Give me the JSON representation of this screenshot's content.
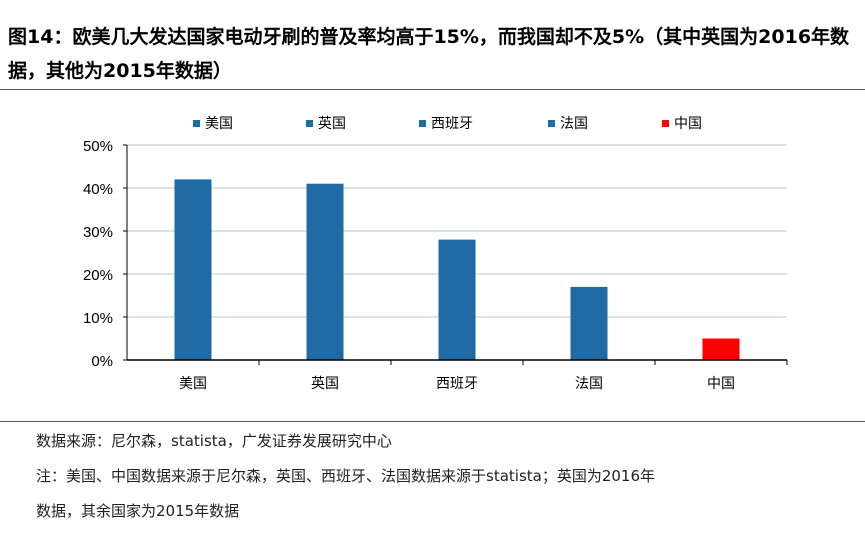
{
  "title": "图14：欧美几大发达国家电动牙刷的普及率均高于15%，而我国却不及5%（其中英国为2016年数据，其他为2015年数据）",
  "chart_data": {
    "type": "bar",
    "categories": [
      "美国",
      "英国",
      "西班牙",
      "法国",
      "中国"
    ],
    "values": [
      42,
      41,
      28,
      17,
      5
    ],
    "colors": [
      "#1f6aa5",
      "#1f6aa5",
      "#1f6aa5",
      "#1f6aa5",
      "#ff0000"
    ],
    "legend": [
      "美国",
      "英国",
      "西班牙",
      "法国",
      "中国"
    ],
    "legend_placement": "top",
    "ylim": [
      0,
      50
    ],
    "yticks": [
      "0%",
      "10%",
      "20%",
      "30%",
      "40%",
      "50%"
    ],
    "grid": true
  },
  "footer": {
    "source": "数据来源：尼尔森，statista，广发证券发展研究中心",
    "note1": "注：美国、中国数据来源于尼尔森，英国、西班牙、法国数据来源于statista；英国为2016年",
    "note2": "数据，其余国家为2015年数据"
  }
}
